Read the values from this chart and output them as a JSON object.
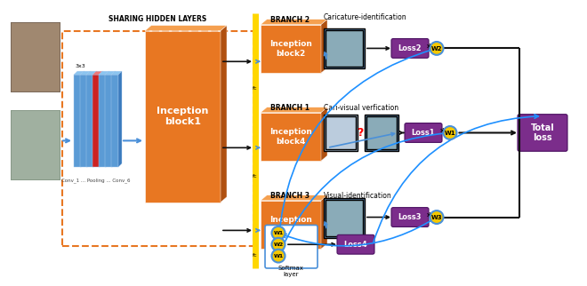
{
  "orange_color": "#E87722",
  "purple_color": "#7B2D8B",
  "blue_color": "#4A90D9",
  "yellow_color": "#F5C800",
  "arrow_color": "#111111",
  "blue_arrow": "#1E90FF",
  "dashed_box_color": "#E87722",
  "sharing_text": "SHARING HIDDEN LAYERS",
  "branch2_text": "BRANCH 2",
  "branch1_text": "BRANCH 1",
  "branch3_text": "BRANCH 3",
  "caric_id_text": "Caricature-identification",
  "cari_visual_text": "Cari-visual verfication",
  "visual_id_text": "Visual-identification",
  "softmax_text": "Softmax\nlayer",
  "total_loss_text": "Total\nloss",
  "block1_text": "Inception\nblock1",
  "block2_text": "Inception\nblock2",
  "block4_text": "Inception\nblock4",
  "block3_text": "Inception\nblock3",
  "loss1_text": "Loss1",
  "loss2_text": "Loss2",
  "loss3_text": "Loss3",
  "loss4_text": "Loss4",
  "conv_text": "Conv_1 ... Pooling ... Conv_6",
  "filter_text": "3x3"
}
